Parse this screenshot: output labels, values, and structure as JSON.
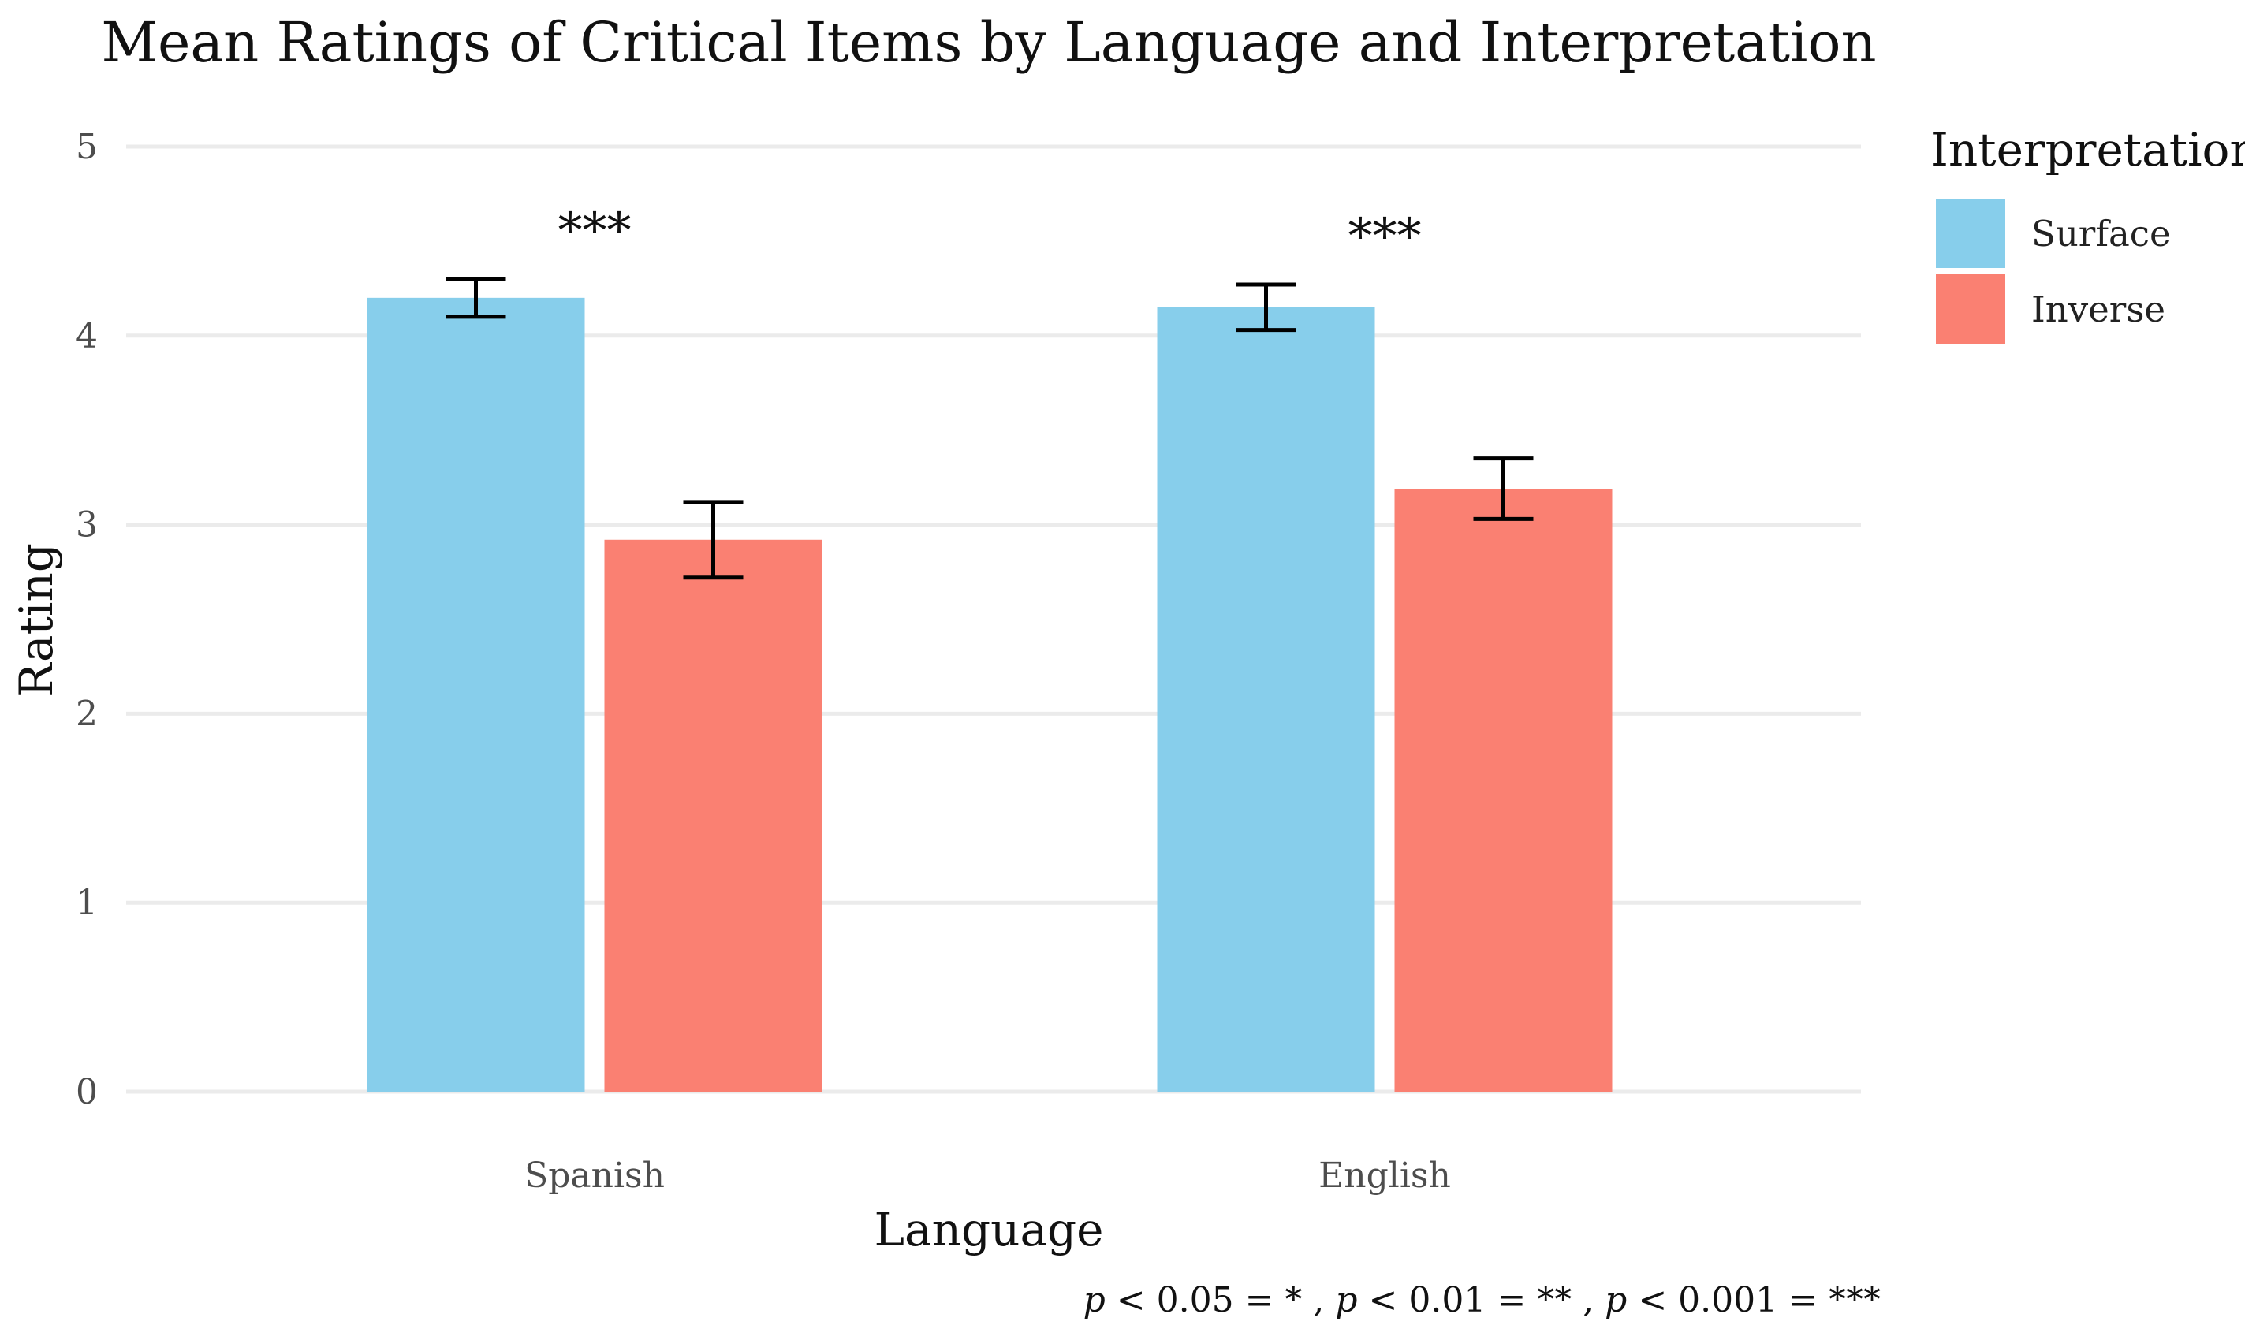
{
  "chart_data": {
    "type": "bar",
    "title": "Mean Ratings of Critical Items by Language and Interpretation",
    "xlabel": "Language",
    "ylabel": "Rating",
    "categories": [
      "Spanish",
      "English"
    ],
    "series": [
      {
        "name": "Surface",
        "color": "#87CEEB",
        "values": [
          4.2,
          4.15
        ],
        "error_low": [
          4.1,
          4.03
        ],
        "error_high": [
          4.3,
          4.27
        ]
      },
      {
        "name": "Inverse",
        "color": "#FA8072",
        "values": [
          2.92,
          3.19
        ],
        "error_low": [
          2.72,
          3.03
        ],
        "error_high": [
          3.12,
          3.35
        ]
      }
    ],
    "significance": [
      "***",
      "***"
    ],
    "ylim": [
      0,
      5
    ],
    "yticks": [
      0,
      1,
      2,
      3,
      4,
      5
    ],
    "grid": true,
    "legend": {
      "title": "Interpretation",
      "position": "right"
    },
    "footnote": {
      "parts": [
        {
          "text": "p",
          "italic": true
        },
        {
          "text": " < 0.05 = * ,  ",
          "italic": false
        },
        {
          "text": "p",
          "italic": true
        },
        {
          "text": " < 0.01 = ** ,  ",
          "italic": false
        },
        {
          "text": "p",
          "italic": true
        },
        {
          "text": " < 0.001 = ***",
          "italic": false
        }
      ]
    }
  }
}
